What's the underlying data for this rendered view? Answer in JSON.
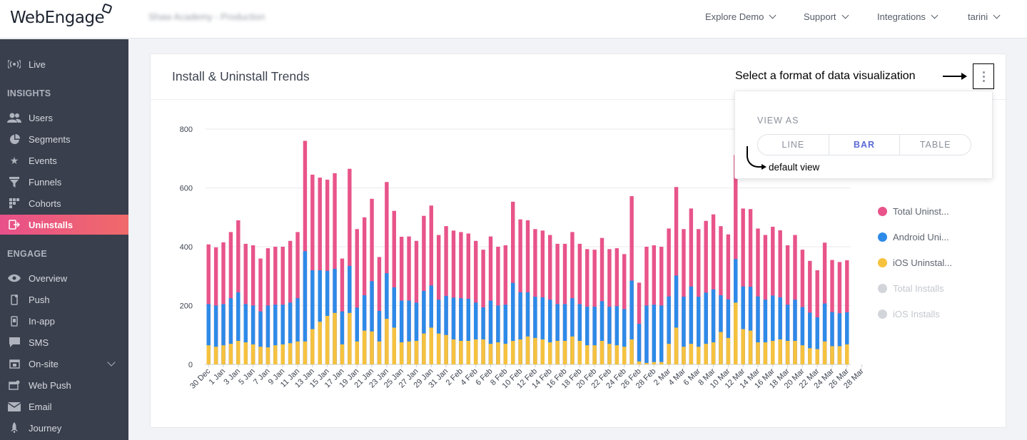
{
  "app": {
    "logo_text": "WebEngage",
    "account_label": "Shaw Academy - Production",
    "nav": [
      {
        "label": "Explore Demo"
      },
      {
        "label": "Support"
      },
      {
        "label": "Integrations"
      },
      {
        "label": "tarini"
      }
    ]
  },
  "sidebar": {
    "live": "Live",
    "insights_header": "INSIGHTS",
    "insights": [
      {
        "label": "Users",
        "icon": "users-icon"
      },
      {
        "label": "Segments",
        "icon": "pie-icon"
      },
      {
        "label": "Events",
        "icon": "star-icon"
      },
      {
        "label": "Funnels",
        "icon": "funnel-icon"
      },
      {
        "label": "Cohorts",
        "icon": "grid-icon"
      },
      {
        "label": "Uninstalls",
        "icon": "uninstall-icon",
        "active": true
      }
    ],
    "engage_header": "ENGAGE",
    "engage": [
      {
        "label": "Overview",
        "icon": "eye-icon"
      },
      {
        "label": "Push",
        "icon": "phone-icon"
      },
      {
        "label": "In-app",
        "icon": "inapp-icon"
      },
      {
        "label": "SMS",
        "icon": "sms-icon"
      },
      {
        "label": "On-site",
        "icon": "onsite-icon"
      },
      {
        "label": "Web Push",
        "icon": "webpush-icon"
      },
      {
        "label": "Email",
        "icon": "email-icon"
      },
      {
        "label": "Journey",
        "icon": "rocket-icon"
      }
    ]
  },
  "card": {
    "title": "Install & Uninstall Trends",
    "annotation": "Select a format of data visualization",
    "dropdown": {
      "view_as": "VIEW AS",
      "options": [
        "LINE",
        "BAR",
        "TABLE"
      ],
      "selected": "BAR",
      "default_note": "default view"
    }
  },
  "colors": {
    "total_uninstalls": "#e8548a",
    "android_uninstalls": "#2d8ae8",
    "ios_uninstalls": "#f6c23e",
    "disabled": "#d2d5da",
    "active_nav": "#ea5585"
  },
  "legend": [
    {
      "label": "Total Uninst...",
      "color": "#e8548a",
      "enabled": true
    },
    {
      "label": "Android Uni...",
      "color": "#2d8ae8",
      "enabled": true
    },
    {
      "label": "iOS Uninstal...",
      "color": "#f6c23e",
      "enabled": true
    },
    {
      "label": "Total Installs",
      "color": "#d2d5da",
      "enabled": false
    },
    {
      "label": "iOS Installs",
      "color": "#d2d5da",
      "enabled": false
    }
  ],
  "chart_data": {
    "type": "bar",
    "title": "",
    "ylim": [
      0,
      800
    ],
    "yticks": [
      0,
      200,
      400,
      600,
      800
    ],
    "grid": true,
    "legend_position": "right",
    "xtick_labels": [
      "30 Dec",
      "1 Jan",
      "3 Jan",
      "5 Jan",
      "7 Jan",
      "9 Jan",
      "11 Jan",
      "13 Jan",
      "15 Jan",
      "17 Jan",
      "19 Jan",
      "21 Jan",
      "23 Jan",
      "25 Jan",
      "27 Jan",
      "29 Jan",
      "31 Jan",
      "2 Feb",
      "4 Feb",
      "6 Feb",
      "8 Feb",
      "10 Feb",
      "12 Feb",
      "14 Feb",
      "16 Feb",
      "18 Feb",
      "20 Feb",
      "22 Feb",
      "24 Feb",
      "26 Feb",
      "28 Feb",
      "2 Mar",
      "4 Mar",
      "6 Mar",
      "8 Mar",
      "10 Mar",
      "12 Mar",
      "14 Mar",
      "16 Mar",
      "18 Mar",
      "20 Mar",
      "22 Mar",
      "24 Mar",
      "26 Mar",
      "28 Mar"
    ],
    "series": [
      {
        "name": "Total Uninst...",
        "values": [
          408,
          398,
          415,
          450,
          490,
          410,
          405,
          360,
          395,
          400,
          400,
          420,
          450,
          760,
          645,
          635,
          628,
          650,
          360,
          665,
          460,
          500,
          563,
          365,
          620,
          522,
          434,
          435,
          420,
          505,
          540,
          440,
          470,
          455,
          450,
          445,
          420,
          390,
          435,
          400,
          405,
          553,
          493,
          490,
          460,
          455,
          440,
          410,
          410,
          450,
          410,
          392,
          390,
          430,
          392,
          395,
          375,
          572,
          278,
          400,
          405,
          400,
          462,
          603,
          460,
          530,
          460,
          488,
          510,
          470,
          442,
          712,
          530,
          528,
          462,
          440,
          468,
          456,
          405,
          440,
          390,
          352,
          320,
          414,
          355,
          348,
          354
        ]
      },
      {
        "name": "Android Uni...",
        "values": [
          205,
          200,
          205,
          225,
          245,
          205,
          200,
          180,
          200,
          203,
          203,
          210,
          225,
          385,
          320,
          320,
          318,
          325,
          180,
          335,
          193,
          235,
          283,
          182,
          310,
          262,
          217,
          217,
          210,
          250,
          268,
          220,
          233,
          227,
          225,
          223,
          210,
          194,
          217,
          200,
          203,
          277,
          245,
          245,
          230,
          228,
          220,
          205,
          205,
          225,
          205,
          196,
          196,
          215,
          196,
          198,
          188,
          285,
          138,
          200,
          203,
          200,
          231,
          302,
          230,
          265,
          230,
          244,
          255,
          235,
          221,
          358,
          265,
          264,
          231,
          220,
          234,
          228,
          203,
          220,
          195,
          176,
          160,
          207,
          178,
          174,
          177
        ]
      },
      {
        "name": "iOS Uninstal...",
        "values": [
          65,
          60,
          65,
          70,
          80,
          75,
          68,
          60,
          58,
          65,
          68,
          72,
          78,
          78,
          120,
          145,
          165,
          175,
          68,
          175,
          78,
          115,
          112,
          78,
          155,
          125,
          75,
          78,
          80,
          105,
          125,
          105,
          100,
          85,
          80,
          80,
          85,
          85,
          70,
          75,
          70,
          80,
          85,
          95,
          90,
          85,
          75,
          80,
          80,
          95,
          80,
          65,
          65,
          80,
          70,
          65,
          60,
          85,
          10,
          5,
          8,
          8,
          70,
          125,
          60,
          70,
          60,
          70,
          75,
          110,
          90,
          210,
          120,
          115,
          75,
          75,
          80,
          85,
          80,
          80,
          65,
          55,
          52,
          78,
          62,
          62,
          68
        ]
      }
    ]
  }
}
